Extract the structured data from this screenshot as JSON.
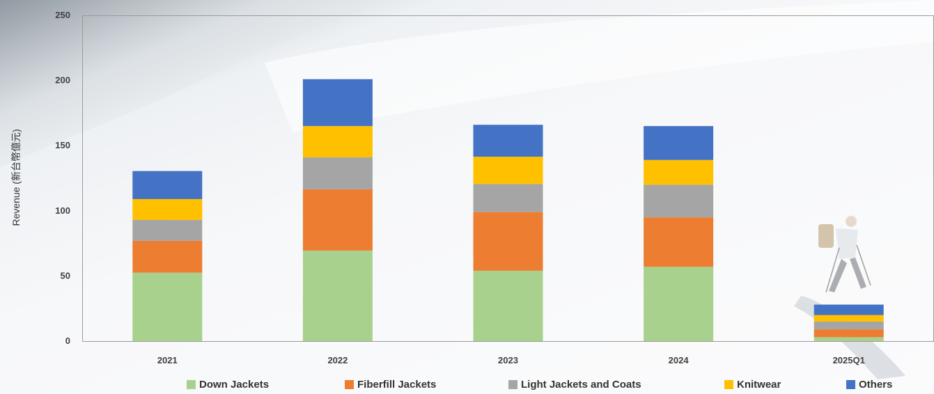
{
  "chart_data": {
    "type": "bar",
    "stacked": true,
    "ylabel": "Revenue (新台幣億元)",
    "xlabel": "",
    "ylim": [
      0,
      250
    ],
    "yticks": [
      0,
      50,
      100,
      150,
      200,
      250
    ],
    "categories": [
      "2021",
      "2022",
      "2023",
      "2024",
      "2025Q1"
    ],
    "series": [
      {
        "name": "Down Jackets",
        "color": "#a9d18e",
        "values": [
          52.5,
          69.5,
          54,
          57,
          3
        ]
      },
      {
        "name": "Fiberfill Jackets",
        "color": "#ed7d31",
        "values": [
          24.5,
          47,
          45,
          38,
          6
        ]
      },
      {
        "name": "Light Jackets and Coats",
        "color": "#a5a5a5",
        "values": [
          16,
          24.5,
          21.5,
          25,
          6
        ]
      },
      {
        "name": "Knitwear",
        "color": "#ffc000",
        "values": [
          16,
          24,
          21,
          19,
          5
        ]
      },
      {
        "name": "Others",
        "color": "#4472c4",
        "values": [
          21.5,
          36,
          24.5,
          26,
          8
        ]
      }
    ],
    "grid": false,
    "legend_position": "bottom"
  }
}
